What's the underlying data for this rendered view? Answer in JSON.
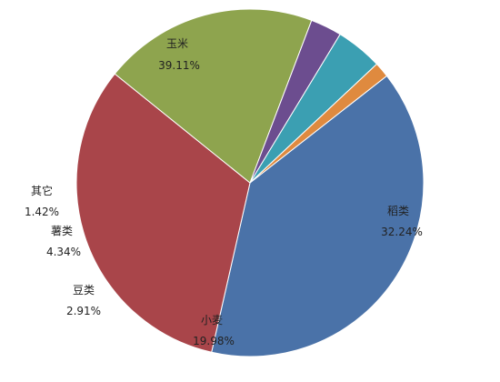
{
  "chart_data": {
    "type": "pie",
    "slices": [
      {
        "label": "玉米",
        "value": 39.11,
        "value_text": "39.11%",
        "color": "#4a72a8"
      },
      {
        "label": "稻类",
        "value": 32.24,
        "value_text": "32.24%",
        "color": "#a9454a"
      },
      {
        "label": "小麦",
        "value": 19.98,
        "value_text": "19.98%",
        "color": "#8ea44e"
      },
      {
        "label": "豆类",
        "value": 2.91,
        "value_text": "2.91%",
        "color": "#6c4d8f"
      },
      {
        "label": "薯类",
        "value": 4.34,
        "value_text": "4.34%",
        "color": "#3b9fb2"
      },
      {
        "label": "其它",
        "value": 1.42,
        "value_text": "1.42%",
        "color": "#df8a3f"
      }
    ],
    "start_angle_deg": 38,
    "direction": "clockwise"
  }
}
